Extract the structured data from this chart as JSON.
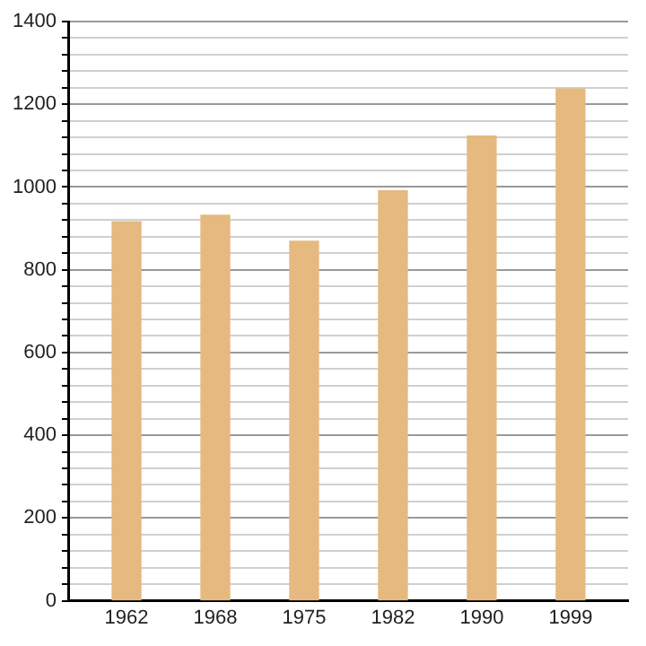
{
  "chart_data": {
    "type": "bar",
    "categories": [
      "1962",
      "1968",
      "1975",
      "1982",
      "1990",
      "1999"
    ],
    "values": [
      916,
      932,
      869,
      991,
      1123,
      1237
    ],
    "color": "#e5b97f",
    "ylim": [
      0,
      1400
    ],
    "yticks": [
      0,
      {
        "value": 40,
        "label": null
      },
      {
        "value": 80,
        "label": null
      },
      {
        "value": 120,
        "label": null
      },
      {
        "value": 160,
        "label": null
      },
      200,
      {
        "value": 240,
        "label": null
      },
      {
        "value": 280,
        "label": null
      },
      {
        "value": 320,
        "label": null
      },
      {
        "value": 360,
        "label": null
      },
      400,
      {
        "value": 440,
        "label": null
      },
      {
        "value": 480,
        "label": null
      },
      {
        "value": 520,
        "label": null
      },
      {
        "value": 560,
        "label": null
      },
      600,
      {
        "value": 640,
        "label": null
      },
      {
        "value": 680,
        "label": null
      },
      {
        "value": 720,
        "label": null
      },
      {
        "value": 760,
        "label": null
      },
      800,
      {
        "value": 840,
        "label": null
      },
      {
        "value": 880,
        "label": null
      },
      {
        "value": 920,
        "label": null
      },
      {
        "value": 960,
        "label": null
      },
      1000,
      {
        "value": 1040,
        "label": null
      },
      {
        "value": 1080,
        "label": null
      },
      {
        "value": 1120,
        "label": null
      },
      {
        "value": 1160,
        "label": null
      },
      1200,
      {
        "value": 1240,
        "label": null
      },
      {
        "value": 1280,
        "label": null
      },
      {
        "value": 1320,
        "label": null
      },
      {
        "value": 1360,
        "label": null
      },
      1400
    ],
    "grid": true
  }
}
